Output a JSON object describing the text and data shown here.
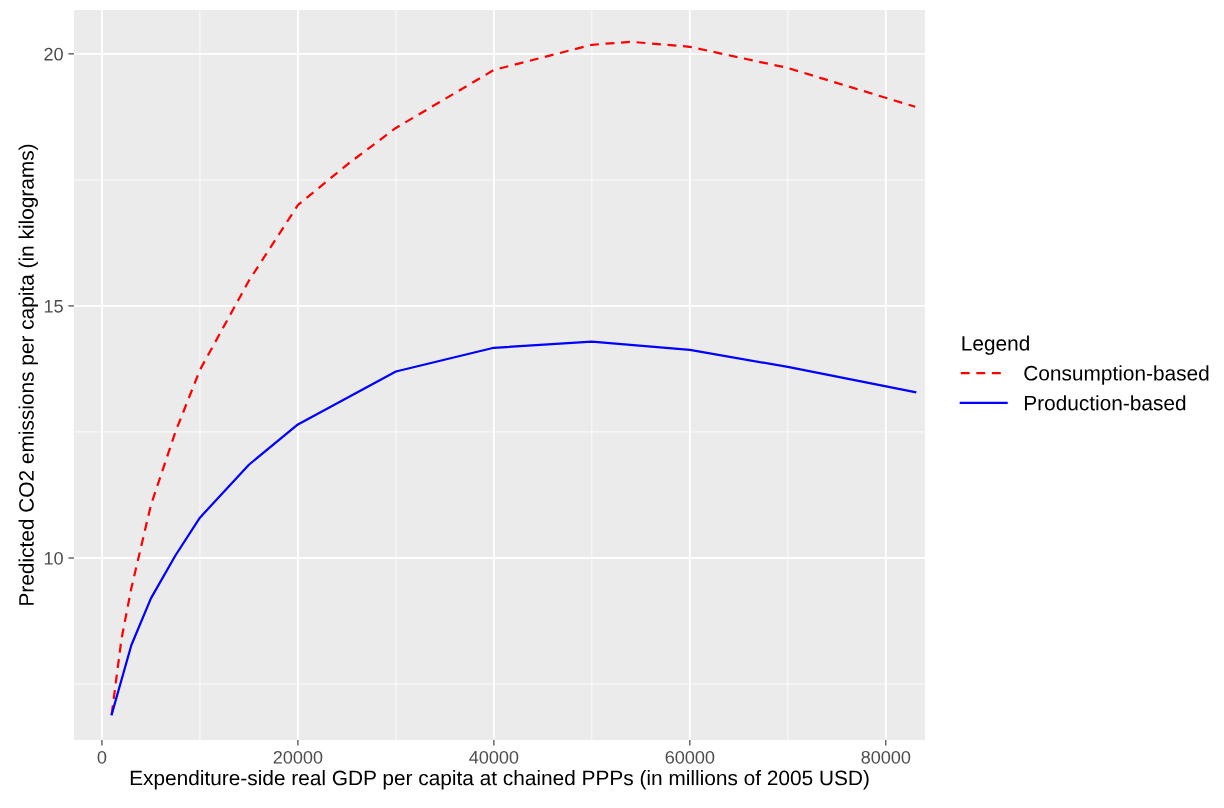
{
  "chart_data": {
    "type": "line",
    "xlabel": "Expenditure-side real GDP per capita at chained PPPs (in millions of 2005 USD)",
    "ylabel": "Predicted CO2 emissions per capita (in kilograms)",
    "legend_title": "Legend",
    "series": [
      {
        "name": "Consumption-based",
        "color": "#ff0000",
        "line_style": "dashed",
        "x": [
          1000,
          2000,
          3000,
          5000,
          7500,
          10000,
          15000,
          20000,
          25000,
          30000,
          40000,
          50000,
          54000,
          60000,
          70000,
          83000
        ],
        "values": [
          6.9,
          8.4,
          9.4,
          11.05,
          12.5,
          13.73,
          15.5,
          17.0,
          17.8,
          18.53,
          19.68,
          20.18,
          20.24,
          20.14,
          19.72,
          18.95
        ]
      },
      {
        "name": "Production-based",
        "color": "#0000ff",
        "line_style": "solid",
        "x": [
          1000,
          3000,
          5000,
          7500,
          10000,
          15000,
          20000,
          30000,
          40000,
          50000,
          60000,
          70000,
          83000
        ],
        "values": [
          6.9,
          8.27,
          9.2,
          10.05,
          10.8,
          11.85,
          12.65,
          13.7,
          14.17,
          14.29,
          14.13,
          13.79,
          13.29
        ]
      }
    ],
    "xlim": [
      -2850,
      84000
    ],
    "xticks": [
      0,
      20000,
      40000,
      60000,
      80000
    ],
    "ylim": [
      6.39,
      20.87
    ],
    "yticks": [
      10,
      15,
      20
    ],
    "grid": true,
    "legend": "right"
  }
}
